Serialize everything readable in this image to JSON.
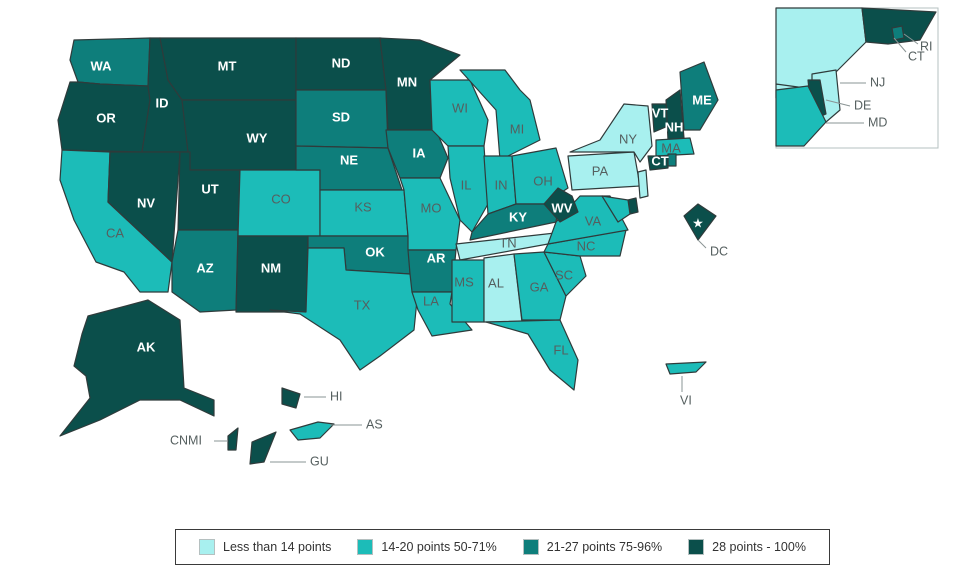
{
  "colors": {
    "tier1": "#a8f0ef",
    "tier2": "#1cbcb8",
    "tier3": "#0e7e7b",
    "tier4": "#0b4f4b"
  },
  "legend": [
    {
      "label": "Less than 14 points",
      "tier": "tier1"
    },
    {
      "label": "14-20 points 50-71%",
      "tier": "tier2"
    },
    {
      "label": "21-27 points 75-96%",
      "tier": "tier3"
    },
    {
      "label": "28 points - 100%",
      "tier": "tier4"
    }
  ],
  "states": [
    {
      "abbr": "WA",
      "tier": "tier3"
    },
    {
      "abbr": "OR",
      "tier": "tier4"
    },
    {
      "abbr": "CA",
      "tier": "tier2"
    },
    {
      "abbr": "ID",
      "tier": "tier4"
    },
    {
      "abbr": "NV",
      "tier": "tier4"
    },
    {
      "abbr": "MT",
      "tier": "tier4"
    },
    {
      "abbr": "WY",
      "tier": "tier4"
    },
    {
      "abbr": "UT",
      "tier": "tier4"
    },
    {
      "abbr": "AZ",
      "tier": "tier3"
    },
    {
      "abbr": "CO",
      "tier": "tier2"
    },
    {
      "abbr": "NM",
      "tier": "tier4"
    },
    {
      "abbr": "ND",
      "tier": "tier4"
    },
    {
      "abbr": "SD",
      "tier": "tier3"
    },
    {
      "abbr": "NE",
      "tier": "tier3"
    },
    {
      "abbr": "KS",
      "tier": "tier2"
    },
    {
      "abbr": "OK",
      "tier": "tier3"
    },
    {
      "abbr": "TX",
      "tier": "tier2"
    },
    {
      "abbr": "MN",
      "tier": "tier4"
    },
    {
      "abbr": "IA",
      "tier": "tier3"
    },
    {
      "abbr": "MO",
      "tier": "tier2"
    },
    {
      "abbr": "AR",
      "tier": "tier3"
    },
    {
      "abbr": "LA",
      "tier": "tier2"
    },
    {
      "abbr": "WI",
      "tier": "tier2"
    },
    {
      "abbr": "IL",
      "tier": "tier2"
    },
    {
      "abbr": "MI",
      "tier": "tier2"
    },
    {
      "abbr": "IN",
      "tier": "tier2"
    },
    {
      "abbr": "OH",
      "tier": "tier2"
    },
    {
      "abbr": "KY",
      "tier": "tier3"
    },
    {
      "abbr": "TN",
      "tier": "tier1"
    },
    {
      "abbr": "MS",
      "tier": "tier2"
    },
    {
      "abbr": "AL",
      "tier": "tier1"
    },
    {
      "abbr": "GA",
      "tier": "tier2"
    },
    {
      "abbr": "FL",
      "tier": "tier2"
    },
    {
      "abbr": "SC",
      "tier": "tier2"
    },
    {
      "abbr": "NC",
      "tier": "tier2"
    },
    {
      "abbr": "VA",
      "tier": "tier2"
    },
    {
      "abbr": "WV",
      "tier": "tier4"
    },
    {
      "abbr": "PA",
      "tier": "tier1"
    },
    {
      "abbr": "NY",
      "tier": "tier1"
    },
    {
      "abbr": "VT",
      "tier": "tier4"
    },
    {
      "abbr": "NH",
      "tier": "tier4"
    },
    {
      "abbr": "ME",
      "tier": "tier3"
    },
    {
      "abbr": "MA",
      "tier": "tier2"
    },
    {
      "abbr": "CT",
      "tier": "tier4"
    },
    {
      "abbr": "RI",
      "tier": "tier3"
    },
    {
      "abbr": "NJ",
      "tier": "tier1"
    },
    {
      "abbr": "DE",
      "tier": "tier4"
    },
    {
      "abbr": "MD",
      "tier": "tier2"
    },
    {
      "abbr": "DC",
      "tier": "tier4"
    },
    {
      "abbr": "AK",
      "tier": "tier4"
    },
    {
      "abbr": "HI",
      "tier": "tier4"
    },
    {
      "abbr": "AS",
      "tier": "tier2"
    },
    {
      "abbr": "CNMI",
      "tier": "tier4"
    },
    {
      "abbr": "GU",
      "tier": "tier4"
    },
    {
      "abbr": "VI",
      "tier": "tier2"
    }
  ]
}
